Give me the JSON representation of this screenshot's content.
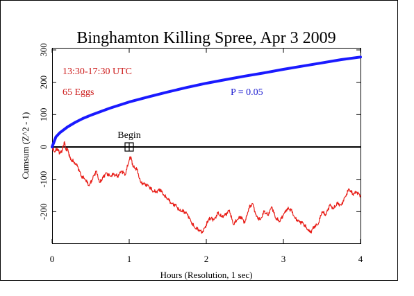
{
  "chart_data": {
    "type": "line",
    "title": "Binghamton Killing Spree, Apr 3 2009",
    "xlabel": "Hours (Resolution, 1 sec)",
    "ylabel": "Cumsum (Z^2 - 1)",
    "xlim": [
      0,
      4
    ],
    "ylim": [
      -300,
      300
    ],
    "x_ticks": [
      0,
      1,
      2,
      3,
      4
    ],
    "y_ticks": [
      300,
      200,
      100,
      0,
      -100,
      -200
    ],
    "annotations": {
      "time_range": "13:30-17:30 UTC",
      "eggs": "65 Eggs",
      "p_value": "P = 0.05",
      "begin_label": "Begin",
      "begin_x": 1,
      "begin_y": 0
    },
    "colors": {
      "cumsum_line": "#e8201a",
      "envelope": "#1a1aff",
      "annotation_red": "#cc1a1a",
      "annotation_blue": "#1a1ad0",
      "zero_line": "#000000"
    },
    "series": [
      {
        "x": [
          0,
          0.03,
          0.07,
          0.1,
          0.13,
          0.16,
          0.18,
          0.2,
          0.24,
          0.28,
          0.33,
          0.38,
          0.43,
          0.48,
          0.52,
          0.57,
          0.62,
          0.66,
          0.7,
          0.75,
          0.8,
          0.85,
          0.9,
          0.95,
          1.0,
          1.02,
          1.05,
          1.1,
          1.15,
          1.2,
          1.25,
          1.3,
          1.35,
          1.4,
          1.45,
          1.5,
          1.55,
          1.6,
          1.65,
          1.7,
          1.75,
          1.8,
          1.85,
          1.9,
          1.95,
          2.0,
          2.03,
          2.06,
          2.1,
          2.15,
          2.2,
          2.25,
          2.3,
          2.35,
          2.4,
          2.45,
          2.5,
          2.55,
          2.6,
          2.65,
          2.7,
          2.75,
          2.8,
          2.85,
          2.9,
          2.95,
          3.0,
          3.05,
          3.1,
          3.15,
          3.2,
          3.25,
          3.3,
          3.35,
          3.4,
          3.45,
          3.5,
          3.55,
          3.6,
          3.65,
          3.7,
          3.75,
          3.8,
          3.85,
          3.9,
          3.95,
          4.0
        ],
        "values": [
          0,
          -15,
          -5,
          -20,
          -10,
          15,
          -10,
          -5,
          -40,
          -45,
          -60,
          -90,
          -100,
          -120,
          -100,
          -75,
          -110,
          -95,
          -80,
          -90,
          -85,
          -90,
          -75,
          -85,
          -40,
          -30,
          -60,
          -70,
          -110,
          -115,
          -120,
          -135,
          -140,
          -130,
          -150,
          -160,
          -175,
          -180,
          -195,
          -200,
          -205,
          -230,
          -250,
          -255,
          -265,
          -240,
          -225,
          -220,
          -225,
          -205,
          -215,
          -210,
          -195,
          -240,
          -225,
          -215,
          -235,
          -190,
          -175,
          -215,
          -225,
          -200,
          -210,
          -185,
          -220,
          -230,
          -210,
          -190,
          -195,
          -220,
          -230,
          -235,
          -250,
          -265,
          -245,
          -240,
          -200,
          -210,
          -180,
          -190,
          -175,
          -180,
          -155,
          -130,
          -145,
          -140,
          -150
        ]
      },
      {
        "name": "P = 0.05",
        "x": [
          0,
          0.05,
          0.1,
          0.2,
          0.3,
          0.4,
          0.5,
          0.75,
          1.0,
          1.25,
          1.5,
          1.75,
          2.0,
          2.25,
          2.5,
          2.75,
          3.0,
          3.25,
          3.5,
          3.75,
          4.0
        ],
        "values": [
          0,
          31,
          44,
          62,
          76,
          88,
          98,
          120,
          139,
          155,
          170,
          184,
          197,
          208,
          219,
          229,
          240,
          250,
          260,
          270,
          278
        ]
      }
    ]
  }
}
